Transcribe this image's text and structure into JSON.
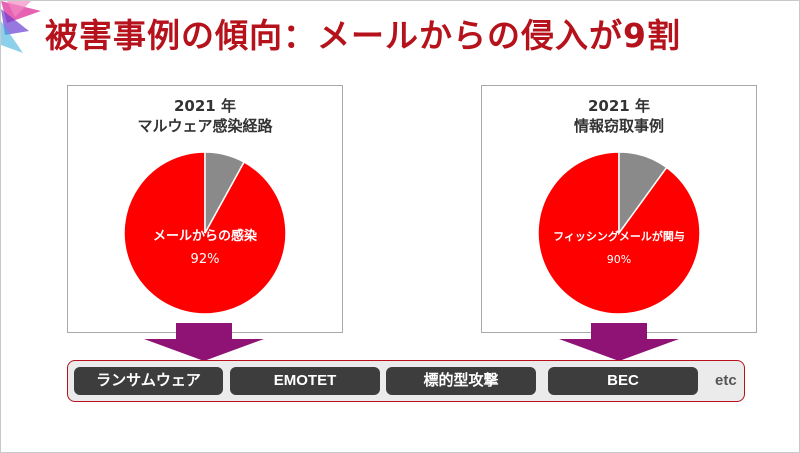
{
  "title": "被害事例の傾向：メールからの侵入が9割",
  "colors": {
    "accent": "#b5121b",
    "pie_main": "#ff0000",
    "pie_other": "#8a8a8a",
    "arrow": "#8e1375",
    "tag_bg": "#3d3d3d"
  },
  "chart_data": [
    {
      "type": "pie",
      "year": "2021 年",
      "title": "マルウェア感染経路",
      "slices": [
        {
          "label": "メールからの感染",
          "value": 92,
          "value_label": "92%"
        },
        {
          "label": "",
          "value": 8
        }
      ]
    },
    {
      "type": "pie",
      "year": "2021 年",
      "title": "情報窃取事例",
      "slices": [
        {
          "label": "フィッシングメールが関与",
          "value": 90,
          "value_label": "90%"
        },
        {
          "label": "",
          "value": 10
        }
      ]
    }
  ],
  "tags": [
    "ランサムウェア",
    "EMOTET",
    "標的型攻撃",
    "BEC"
  ],
  "etc": "etc"
}
